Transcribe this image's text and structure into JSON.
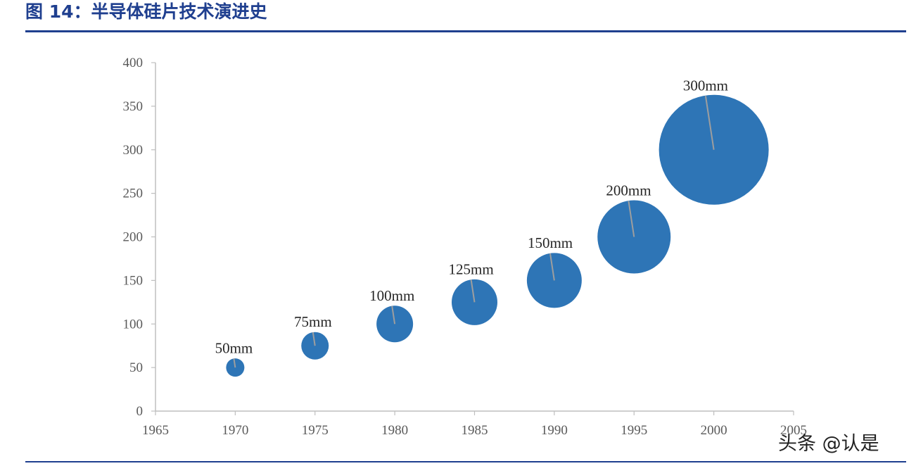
{
  "figure": {
    "title": "图 14：半导体硅片技术演进史"
  },
  "watermark": "头条 @认是",
  "colors": {
    "title": "#1f3f8f",
    "rule": "#1f3f8f",
    "bubble": "#2e75b6",
    "leader": "#9e9e9e",
    "axis": "#bfbfbf"
  },
  "chart_data": {
    "type": "scatter",
    "variant": "bubble",
    "title": "",
    "xlabel": "",
    "ylabel": "",
    "xlim": [
      1965,
      2005
    ],
    "ylim": [
      0,
      400
    ],
    "x_ticks": [
      "1965",
      "1970",
      "1975",
      "1980",
      "1985",
      "1990",
      "1995",
      "2000",
      "2005"
    ],
    "y_ticks": [
      "0",
      "50",
      "100",
      "150",
      "200",
      "250",
      "300",
      "350",
      "400"
    ],
    "grid": false,
    "legend": "none",
    "series": [
      {
        "points": [
          {
            "x": 1970,
            "y": 50,
            "size": 50,
            "label": "50mm"
          },
          {
            "x": 1975,
            "y": 75,
            "size": 75,
            "label": "75mm"
          },
          {
            "x": 1980,
            "y": 100,
            "size": 100,
            "label": "100mm"
          },
          {
            "x": 1985,
            "y": 125,
            "size": 125,
            "label": "125mm"
          },
          {
            "x": 1990,
            "y": 150,
            "size": 150,
            "label": "150mm"
          },
          {
            "x": 1995,
            "y": 200,
            "size": 200,
            "label": "200mm"
          },
          {
            "x": 2000,
            "y": 300,
            "size": 300,
            "label": "300mm"
          }
        ]
      }
    ]
  }
}
